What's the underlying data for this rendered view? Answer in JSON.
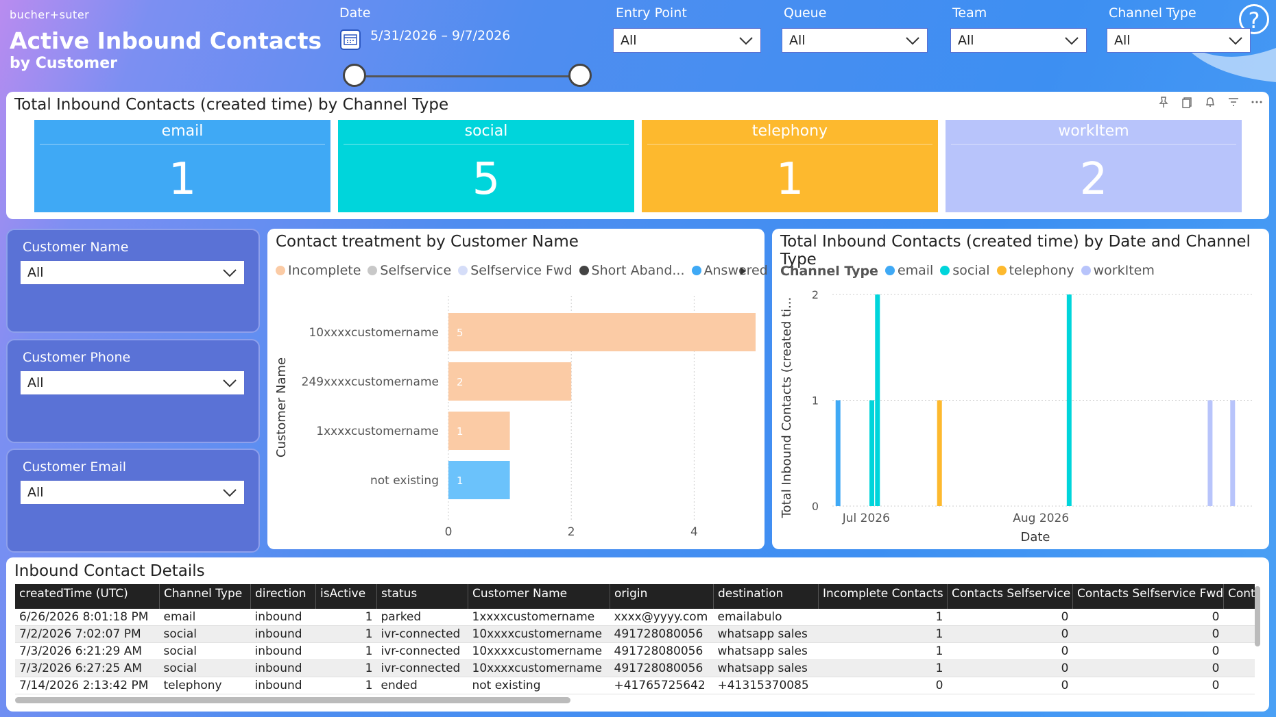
{
  "header": {
    "brand": "bucher+suter",
    "title": "Active Inbound Contacts",
    "subtitle": "by Customer",
    "help_glyph": "?"
  },
  "filters": {
    "date_label": "Date",
    "date_range": "5/31/2026 – 9/7/2026",
    "entry_point": {
      "label": "Entry Point",
      "value": "All"
    },
    "queue": {
      "label": "Queue",
      "value": "All"
    },
    "team": {
      "label": "Team",
      "value": "All"
    },
    "channel_type": {
      "label": "Channel Type",
      "value": "All"
    }
  },
  "kpi": {
    "title": "Total Inbound Contacts (created time) by Channel Type",
    "cards": [
      {
        "label": "email",
        "value": "1",
        "color": "#3fa9f5"
      },
      {
        "label": "social",
        "value": "5",
        "color": "#00d5db"
      },
      {
        "label": "telephony",
        "value": "1",
        "color": "#fdb92e"
      },
      {
        "label": "workItem",
        "value": "2",
        "color": "#b8c4fb"
      }
    ]
  },
  "slicers": [
    {
      "label": "Customer Name",
      "value": "All"
    },
    {
      "label": "Customer Phone",
      "value": "All"
    },
    {
      "label": "Customer Email",
      "value": "All"
    }
  ],
  "treatment_chart": {
    "title": "Contact treatment by Customer Name",
    "chart_data": {
      "type": "bar",
      "orientation": "horizontal",
      "ylabel": "Customer Name",
      "legend": [
        {
          "name": "Incomplete",
          "color": "#fbcba5"
        },
        {
          "name": "Selfservice",
          "color": "#c8c8c8"
        },
        {
          "name": "Selfservice Fwd",
          "color": "#d5ddf8"
        },
        {
          "name": "Short Aband...",
          "color": "#444444"
        },
        {
          "name": "Answered",
          "color": "#3fa9f5"
        }
      ],
      "categories": [
        "10xxxxcustomername",
        "249xxxxcustomername",
        "1xxxxcustomername",
        "not existing"
      ],
      "bars": [
        {
          "category": "10xxxxcustomername",
          "series": "Incomplete",
          "value": 5,
          "label": "5",
          "color": "#fbcba5"
        },
        {
          "category": "249xxxxcustomername",
          "series": "Incomplete",
          "value": 2,
          "label": "2",
          "color": "#fbcba5"
        },
        {
          "category": "1xxxxcustomername",
          "series": "Incomplete",
          "value": 1,
          "label": "1",
          "color": "#fbcba5"
        },
        {
          "category": "not existing",
          "series": "Answered",
          "value": 1,
          "label": "1",
          "color": "#6bc2fb"
        }
      ],
      "xlim": [
        0,
        5
      ],
      "xticks": [
        "0",
        "2",
        "4"
      ],
      "grid": true
    }
  },
  "date_chart": {
    "title": "Total Inbound Contacts (created time) by Date and Channel Type",
    "chart_data": {
      "type": "bar",
      "legend_title": "Channel Type",
      "legend": [
        {
          "name": "email",
          "color": "#3fa9f5"
        },
        {
          "name": "social",
          "color": "#00d5db"
        },
        {
          "name": "telephony",
          "color": "#fdb92e"
        },
        {
          "name": "workItem",
          "color": "#b8c4fb"
        }
      ],
      "xlabel": "Date",
      "ylabel": "Total Inbound Contacts (created ti...",
      "ylim": [
        0,
        2
      ],
      "yticks": [
        "0",
        "1",
        "2"
      ],
      "x_range": [
        "2026-06-25",
        "2026-09-05"
      ],
      "xticks": [
        {
          "date": "2026-07-01",
          "label": "Jul 2026"
        },
        {
          "date": "2026-08-01",
          "label": "Aug 2026"
        }
      ],
      "points": [
        {
          "date": "2026-06-26",
          "series": "email",
          "value": 1
        },
        {
          "date": "2026-07-02",
          "series": "social",
          "value": 1
        },
        {
          "date": "2026-07-03",
          "series": "social",
          "value": 2
        },
        {
          "date": "2026-07-14",
          "series": "telephony",
          "value": 1
        },
        {
          "date": "2026-08-06",
          "series": "social",
          "value": 2
        },
        {
          "date": "2026-08-31",
          "series": "workItem",
          "value": 1
        },
        {
          "date": "2026-09-04",
          "series": "workItem",
          "value": 1
        }
      ],
      "grid": true
    }
  },
  "details": {
    "title": "Inbound Contact Details",
    "columns": [
      "createdTime (UTC)",
      "Channel Type",
      "direction",
      "isActive",
      "status",
      "Customer Name",
      "origin",
      "destination",
      "Incomplete Contacts",
      "Contacts Selfservice",
      "Contacts Selfservice Fwd",
      "Contacts Short Abandor"
    ],
    "rows": [
      [
        "6/26/2026 8:01:18 PM",
        "email",
        "inbound",
        "1",
        "parked",
        "1xxxxcustomername",
        "xxxx@yyyy.com",
        "emailabulo",
        "1",
        "0",
        "0",
        ""
      ],
      [
        "7/2/2026 7:02:07 PM",
        "social",
        "inbound",
        "1",
        "ivr-connected",
        "10xxxxcustomername",
        "491728080056",
        "whatsapp sales",
        "1",
        "0",
        "0",
        ""
      ],
      [
        "7/3/2026 6:21:29 AM",
        "social",
        "inbound",
        "1",
        "ivr-connected",
        "10xxxxcustomername",
        "491728080056",
        "whatsapp sales",
        "1",
        "0",
        "0",
        ""
      ],
      [
        "7/3/2026 6:27:25 AM",
        "social",
        "inbound",
        "1",
        "ivr-connected",
        "10xxxxcustomername",
        "491728080056",
        "whatsapp sales",
        "1",
        "0",
        "0",
        ""
      ],
      [
        "7/14/2026 2:13:42 PM",
        "telephony",
        "inbound",
        "1",
        "ended",
        "not existing",
        "+41765725642",
        "+41315370085",
        "0",
        "0",
        "0",
        ""
      ]
    ]
  }
}
